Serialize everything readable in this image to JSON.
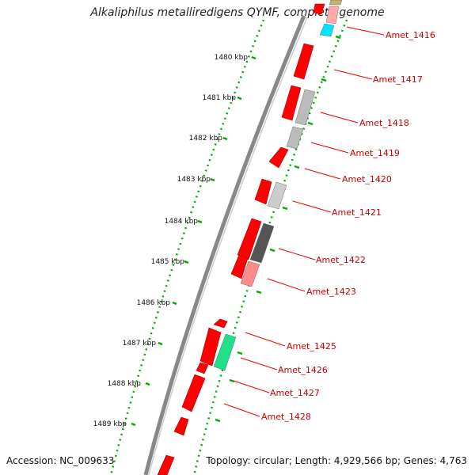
{
  "header": {
    "title": "Alkaliphilus metalliredigens QYMF, complete genome"
  },
  "footer": {
    "accession": "Accession: NC_009633",
    "summary": "Topology: circular; Length: 4,929,566 bp; Genes: 4,763"
  },
  "colors": {
    "backbone": "#888888",
    "tick": "#00aa00",
    "gene_forward": "#ff0000",
    "label": "#cc0000"
  },
  "scale": {
    "unit": "kbp",
    "ticks": [
      "1480 kbp",
      "1481 kbp",
      "1482 kbp",
      "1483 kbp",
      "1484 kbp",
      "1485 kbp",
      "1486 kbp",
      "1487 kbp",
      "1488 kbp",
      "1489 kbp"
    ]
  },
  "gene_labels": [
    "Amet_1416",
    "Amet_1417",
    "Amet_1418",
    "Amet_1419",
    "Amet_1420",
    "Amet_1421",
    "Amet_1422",
    "Amet_1423",
    "Amet_1425",
    "Amet_1426",
    "Amet_1427",
    "Amet_1428"
  ]
}
